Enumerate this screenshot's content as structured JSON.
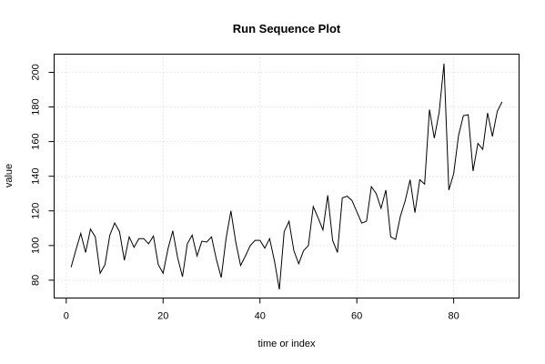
{
  "chart_data": {
    "type": "line",
    "title": "Run Sequence Plot",
    "xlabel": "time or index",
    "ylabel": "value",
    "xlim": [
      -2.5,
      93.5
    ],
    "ylim": [
      69.7,
      210.5
    ],
    "x_ticks": [
      0,
      20,
      40,
      60,
      80
    ],
    "y_ticks": [
      80,
      100,
      120,
      140,
      160,
      180,
      200
    ],
    "x_tick_labels": [
      "0",
      "20",
      "40",
      "60",
      "80"
    ],
    "y_tick_labels": [
      "80",
      "100",
      "120",
      "140",
      "160",
      "180",
      "200"
    ],
    "grid": true,
    "legend": "none",
    "series": [
      {
        "x": [
          1,
          2,
          3,
          4,
          5,
          6,
          7,
          8,
          9,
          10,
          11,
          12,
          13,
          14,
          15,
          16,
          17,
          18,
          19,
          20,
          21,
          22,
          23,
          24,
          25,
          26,
          27,
          28,
          29,
          30,
          31,
          32,
          33,
          34,
          35,
          36,
          37,
          38,
          39,
          40,
          41,
          42,
          43,
          44,
          45,
          46,
          47,
          48,
          49,
          50,
          51,
          52,
          53,
          54,
          55,
          56,
          57,
          58,
          59,
          60,
          61,
          62,
          63,
          64,
          65,
          66,
          67,
          68,
          69,
          70,
          71,
          72,
          73,
          74,
          75,
          76,
          77,
          78,
          79,
          80,
          81,
          82,
          83,
          84,
          85,
          86,
          87,
          88,
          89,
          90
        ],
        "values": [
          87.5,
          97.5,
          107,
          96,
          109.5,
          105,
          84,
          89,
          106,
          113,
          108,
          91.5,
          105,
          99,
          104,
          104,
          101,
          105.5,
          89,
          84,
          98,
          108.5,
          93,
          82,
          101,
          106,
          94,
          102.5,
          102,
          105,
          92,
          81.5,
          104,
          120,
          102,
          88.5,
          94,
          100,
          103,
          103,
          98.5,
          104,
          91,
          74.7,
          108,
          114,
          97,
          89.5,
          97,
          100,
          122.5,
          116,
          109,
          129,
          103,
          96,
          127.5,
          128.5,
          126,
          119.5,
          113,
          114,
          134,
          130,
          121.5,
          132,
          105,
          103.5,
          117,
          126,
          138,
          119,
          138,
          135.5,
          178.5,
          162,
          177,
          205,
          132,
          141.5,
          163.5,
          175,
          175.5,
          143,
          159,
          155.5,
          176.5,
          163,
          177.5,
          183
        ]
      }
    ]
  }
}
